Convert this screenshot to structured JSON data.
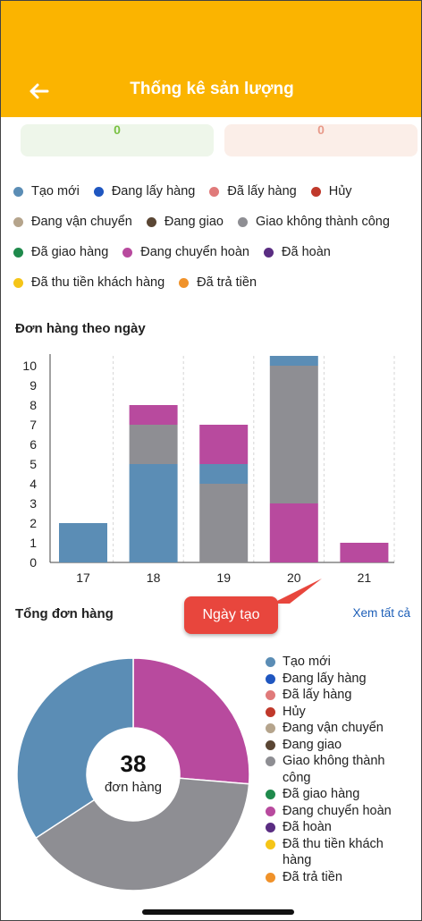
{
  "header": {
    "title": "Thống kê sản lượng",
    "back_icon": "arrow-left-icon",
    "bg": "#fbb400"
  },
  "summary_cards": [
    {
      "value": "0",
      "bg": "#eef6ea",
      "color": "#7ac143"
    },
    {
      "value": "0",
      "bg": "#fbeee8",
      "color": "#e89a8a"
    }
  ],
  "statuses": [
    {
      "label": "Tạo mới",
      "color": "#5b8db5"
    },
    {
      "label": "Đang lấy hàng",
      "color": "#1f56c0"
    },
    {
      "label": "Đã lấy hàng",
      "color": "#e07a7a"
    },
    {
      "label": "Hủy",
      "color": "#c0392b"
    },
    {
      "label": "Đang vận chuyển",
      "color": "#b5a48c"
    },
    {
      "label": "Đang giao",
      "color": "#5a4634"
    },
    {
      "label": "Giao không thành công",
      "color": "#8e8e93"
    },
    {
      "label": "Đã giao hàng",
      "color": "#1f8a4c"
    },
    {
      "label": "Đang chuyển hoàn",
      "color": "#b84a9e"
    },
    {
      "label": "Đã hoàn",
      "color": "#5a2d82"
    },
    {
      "label": "Đã thu tiền khách hàng",
      "color": "#f5c518"
    },
    {
      "label": "Đã trả tiền",
      "color": "#f0922a"
    }
  ],
  "legend_side_labels": [
    [
      "Tạo mới"
    ],
    [
      "Đang lấy hàng"
    ],
    [
      "Đã lấy hàng"
    ],
    [
      "Hủy"
    ],
    [
      "Đang vận chuyển"
    ],
    [
      "Đang giao"
    ],
    [
      "Giao không thành",
      "công"
    ],
    [
      "Đã giao hàng"
    ],
    [
      "Đang chuyển hoàn"
    ],
    [
      "Đã hoàn"
    ],
    [
      "Đã thu tiền khách",
      "hàng"
    ],
    [
      "Đã trả tiền"
    ]
  ],
  "by_day": {
    "title": "Đơn hàng theo ngày"
  },
  "tooltip": {
    "label": "Ngày tạo"
  },
  "total": {
    "title": "Tổng đơn hàng",
    "see_all": "Xem tất cả",
    "count": "38",
    "unit": "đơn hàng"
  },
  "chart_data": [
    {
      "type": "bar",
      "stacked": true,
      "title": "Đơn hàng theo ngày",
      "categories": [
        "17",
        "18",
        "19",
        "20",
        "21"
      ],
      "y_ticks": [
        0,
        1,
        2,
        3,
        4,
        5,
        6,
        7,
        8,
        9,
        10
      ],
      "ylim": [
        0,
        10.5
      ],
      "grid": "vertical-dashed",
      "series": [
        {
          "name": "Tạo mới",
          "color": "#5b8db5",
          "values": [
            2,
            5,
            1,
            0.5,
            0
          ]
        },
        {
          "name": "Giao không thành công",
          "color": "#8e8e93",
          "values": [
            0,
            2,
            4,
            7,
            0
          ]
        },
        {
          "name": "Đang chuyển hoàn",
          "color": "#b84a9e",
          "values": [
            0,
            1,
            2,
            3,
            1
          ]
        }
      ],
      "stack_order_bottom_to_top": {
        "17": [
          "Tạo mới"
        ],
        "18": [
          "Tạo mới",
          "Giao không thành công",
          "Đang chuyển hoàn"
        ],
        "19": [
          "Giao không thành công",
          "Tạo mới",
          "Đang chuyển hoàn"
        ],
        "20": [
          "Đang chuyển hoàn",
          "Giao không thành công",
          "Tạo mới"
        ],
        "21": [
          "Đang chuyển hoàn"
        ]
      }
    },
    {
      "type": "pie",
      "donut": true,
      "title": "Tổng đơn hàng",
      "center_text": "38 đơn hàng",
      "slices": [
        {
          "name": "Đang chuyển hoàn",
          "value": 10,
          "color": "#b84a9e"
        },
        {
          "name": "Giao không thành công",
          "value": 15,
          "color": "#8e8e93"
        },
        {
          "name": "Tạo mới",
          "value": 13,
          "color": "#5b8db5"
        }
      ]
    }
  ]
}
